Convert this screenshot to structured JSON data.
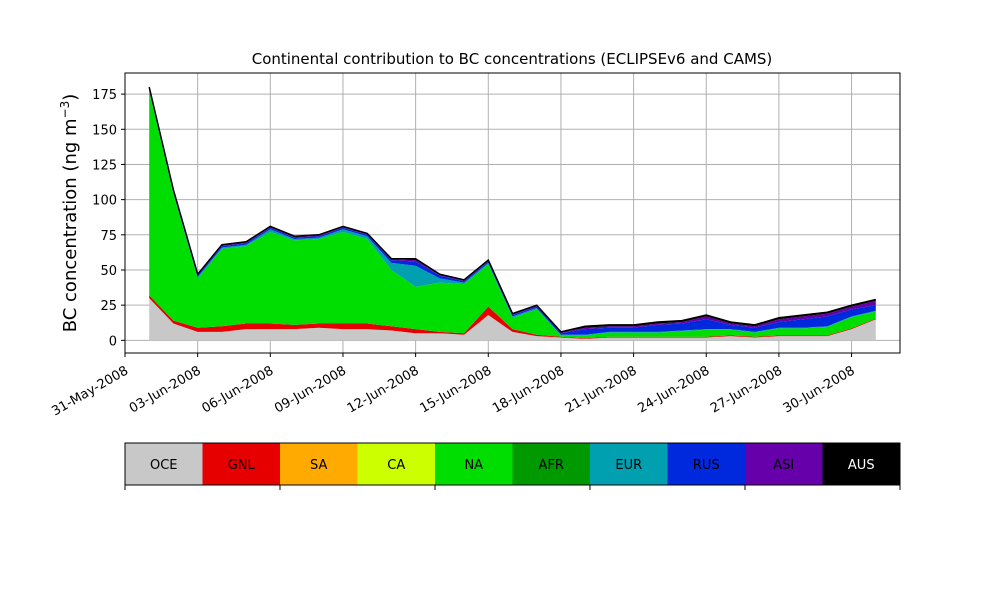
{
  "chart_data": {
    "type": "area",
    "title": "Continental contribution to BC concentrations (ECLIPSEv6 and CAMS)",
    "ylabel": "BC concentration (ng m",
    "ylabel_superscript": "−3",
    "ylabel_close": ")",
    "xlabel": "",
    "grid": true,
    "stacked": true,
    "x_unit": "date (2008-06)",
    "xlim": [
      "2008-05-31",
      "2008-07-02"
    ],
    "ylim": [
      -9,
      190
    ],
    "x_ticks": [
      "2008-05-31",
      "2008-06-03",
      "2008-06-06",
      "2008-06-09",
      "2008-06-12",
      "2008-06-15",
      "2008-06-18",
      "2008-06-21",
      "2008-06-24",
      "2008-06-27",
      "2008-06-30"
    ],
    "x_tick_labels": [
      "31-May-2008",
      "03-Jun-2008",
      "06-Jun-2008",
      "09-Jun-2008",
      "12-Jun-2008",
      "15-Jun-2008",
      "18-Jun-2008",
      "21-Jun-2008",
      "24-Jun-2008",
      "27-Jun-2008",
      "30-Jun-2008"
    ],
    "y_ticks": [
      0,
      25,
      50,
      75,
      100,
      125,
      150,
      175
    ],
    "y_tick_labels": [
      "0",
      "25",
      "50",
      "75",
      "100",
      "125",
      "150",
      "175"
    ],
    "legend_placement": "below plot (color bar)",
    "x": [
      "2008-06-01",
      "2008-06-02",
      "2008-06-03",
      "2008-06-04",
      "2008-06-05",
      "2008-06-06",
      "2008-06-07",
      "2008-06-08",
      "2008-06-09",
      "2008-06-10",
      "2008-06-11",
      "2008-06-12",
      "2008-06-13",
      "2008-06-14",
      "2008-06-15",
      "2008-06-16",
      "2008-06-17",
      "2008-06-18",
      "2008-06-19",
      "2008-06-20",
      "2008-06-21",
      "2008-06-22",
      "2008-06-23",
      "2008-06-24",
      "2008-06-25",
      "2008-06-26",
      "2008-06-27",
      "2008-06-28",
      "2008-06-29",
      "2008-06-30",
      "2008-07-01"
    ],
    "series": [
      {
        "name": "OCE",
        "color": "#c8c8c8",
        "values": [
          30,
          12,
          6,
          6,
          8,
          8,
          8,
          9,
          8,
          8,
          7,
          5,
          5,
          4,
          18,
          6,
          3,
          2,
          1,
          2,
          2,
          2,
          2,
          2,
          3,
          2,
          3,
          3,
          3,
          8,
          15
        ]
      },
      {
        "name": "GNL",
        "color": "#e60000",
        "values": [
          2,
          2,
          3,
          4,
          4,
          4,
          3,
          3,
          4,
          4,
          3,
          3,
          1,
          1,
          6,
          2,
          1,
          0.5,
          0.5,
          0.5,
          0.5,
          0.5,
          0.5,
          0.5,
          0.5,
          0.5,
          0.5,
          0.5,
          0.5,
          0.5,
          0.5
        ]
      },
      {
        "name": "SA",
        "color": "#ffaa00",
        "values": [
          0,
          0,
          0,
          0,
          0,
          0,
          0,
          0,
          0,
          0,
          0,
          0,
          0,
          0,
          0,
          0,
          0,
          0,
          0,
          0,
          0,
          0,
          0,
          0,
          0,
          0,
          0,
          0,
          0,
          0,
          0
        ]
      },
      {
        "name": "CA",
        "color": "#ccff00",
        "values": [
          0,
          0,
          0,
          0,
          0,
          0,
          0,
          0,
          0,
          0,
          0,
          0,
          0,
          0,
          0,
          0,
          0,
          0,
          0,
          0,
          0,
          0,
          0,
          0,
          0,
          0,
          0,
          0,
          0,
          0,
          0
        ]
      },
      {
        "name": "NA",
        "color": "#00dd00",
        "values": [
          145,
          90,
          35,
          55,
          55,
          65,
          60,
          60,
          65,
          60,
          40,
          30,
          35,
          35,
          30,
          8,
          18,
          1,
          2,
          3,
          3,
          3,
          4,
          5,
          4,
          3,
          5,
          5,
          6,
          8,
          5
        ]
      },
      {
        "name": "AFR",
        "color": "#009900",
        "values": [
          0,
          0,
          0,
          0,
          0,
          0,
          0,
          0,
          0,
          0,
          0,
          0,
          0,
          0,
          0,
          0,
          0,
          0,
          0,
          0,
          0,
          0,
          0,
          0,
          0,
          0,
          0,
          0,
          0,
          0,
          0
        ]
      },
      {
        "name": "EUR",
        "color": "#00a0b0",
        "values": [
          1,
          1,
          1,
          1,
          1,
          2,
          1,
          1,
          2,
          2,
          5,
          15,
          3,
          1,
          1,
          1,
          1,
          0.5,
          0.5,
          0.5,
          0.5,
          0.5,
          0.5,
          0.5,
          0.5,
          0.5,
          0.5,
          0.5,
          0.5,
          0.5,
          0.5
        ]
      },
      {
        "name": "RUS",
        "color": "#0028dd",
        "values": [
          1,
          1,
          1,
          1,
          1,
          1,
          1,
          1,
          1,
          1,
          2,
          3,
          2,
          1,
          1,
          1,
          1,
          1,
          4,
          3,
          3,
          5,
          5,
          7,
          3,
          3,
          4,
          6,
          7,
          5,
          4
        ]
      },
      {
        "name": "ASI",
        "color": "#6600aa",
        "values": [
          0.5,
          0.5,
          0.5,
          0.5,
          0.5,
          0.5,
          0.5,
          0.5,
          0.5,
          0.5,
          0.5,
          1,
          0.5,
          0.5,
          0.5,
          0.5,
          0.5,
          0.5,
          1,
          1,
          1,
          1,
          1,
          2,
          1,
          1,
          2,
          2,
          2,
          2,
          3
        ]
      },
      {
        "name": "AUS",
        "color": "#000000",
        "values": [
          0.5,
          0.5,
          0.5,
          0.5,
          0.5,
          0.5,
          0.5,
          0.5,
          0.5,
          0.5,
          0.5,
          1,
          0.5,
          0.5,
          0.5,
          0.5,
          0.5,
          0.5,
          1,
          1,
          1,
          1,
          1,
          1,
          1,
          1,
          1,
          1,
          1,
          1,
          1
        ]
      }
    ]
  }
}
